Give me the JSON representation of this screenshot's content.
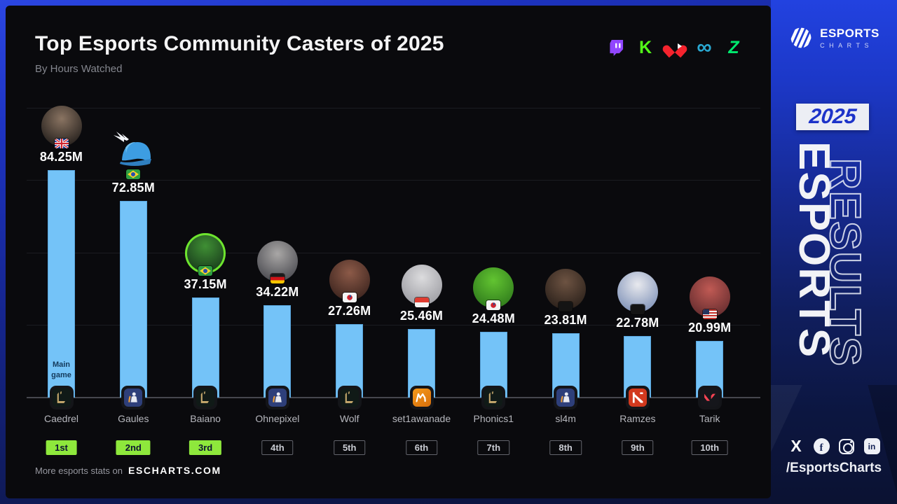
{
  "header": {
    "title": "Top Esports Community Casters of 2025",
    "subtitle": "By Hours Watched",
    "platform_icons": [
      "twitch",
      "kick",
      "heart-live",
      "soop-infinity",
      "chzzk"
    ]
  },
  "chart_data": {
    "type": "bar",
    "title": "Top Esports Community Casters of 2025",
    "metric": "Hours Watched",
    "unit": "millions of hours",
    "ylim": [
      0,
      107
    ],
    "grid": true,
    "bar_color": "#74c3f8",
    "main_game_note": "Main game",
    "casters": [
      {
        "rank": "1st",
        "name": "Caedrel",
        "value": 84.25,
        "label": "84.25M",
        "country": "gb",
        "game": "lol",
        "top3": true,
        "avatar": "circle",
        "avatar_colors": [
          "#8a7462",
          "#241f1c"
        ]
      },
      {
        "rank": "2nd",
        "name": "Gaules",
        "value": 72.85,
        "label": "72.85M",
        "country": "br",
        "game": "cs2",
        "top3": true,
        "avatar": "helmet",
        "avatar_colors": [
          "#4aa3e8",
          "#2f7fc0"
        ]
      },
      {
        "rank": "3rd",
        "name": "Baiano",
        "value": 37.15,
        "label": "37.15M",
        "country": "br",
        "game": "lol",
        "top3": true,
        "avatar": "circle",
        "avatar_colors": [
          "#3f8f34",
          "#16351a"
        ],
        "ring": "#6ee52e"
      },
      {
        "rank": "4th",
        "name": "Ohnepixel",
        "value": 34.22,
        "label": "34.22M",
        "country": "de",
        "game": "cs2",
        "top3": false,
        "avatar": "circle",
        "avatar_colors": [
          "#a9a7a6",
          "#4a4a50"
        ]
      },
      {
        "rank": "5th",
        "name": "Wolf",
        "value": 27.26,
        "label": "27.26M",
        "country": "kr",
        "game": "lol",
        "top3": false,
        "avatar": "circle",
        "avatar_colors": [
          "#8c5a48",
          "#3c241e"
        ]
      },
      {
        "rank": "6th",
        "name": "set1awanade",
        "value": 25.46,
        "label": "25.46M",
        "country": "id",
        "game": "mlbb",
        "top3": false,
        "avatar": "circle",
        "avatar_colors": [
          "#dcdcde",
          "#9c9ca2"
        ]
      },
      {
        "rank": "7th",
        "name": "Phonics1",
        "value": 24.48,
        "label": "24.48M",
        "country": "kr",
        "game": "lol",
        "top3": false,
        "avatar": "circle",
        "avatar_colors": [
          "#62c431",
          "#2f7a1c"
        ]
      },
      {
        "rank": "8th",
        "name": "sl4m",
        "value": 23.81,
        "label": "23.81M",
        "country": "censored",
        "game": "cs2",
        "top3": false,
        "avatar": "circle",
        "avatar_colors": [
          "#6d5342",
          "#2a201a"
        ]
      },
      {
        "rank": "9th",
        "name": "Ramzes",
        "value": 22.78,
        "label": "22.78M",
        "country": "censored",
        "game": "dota2",
        "top3": false,
        "avatar": "circle",
        "avatar_colors": [
          "#e8e9ee",
          "#7f92b8"
        ]
      },
      {
        "rank": "10th",
        "name": "Tarik",
        "value": 20.99,
        "label": "20.99M",
        "country": "us",
        "game": "valorant",
        "top3": false,
        "avatar": "circle",
        "avatar_colors": [
          "#c05a54",
          "#642c2e"
        ]
      }
    ],
    "games": {
      "lol": "League of Legends",
      "cs2": "Counter-Strike 2",
      "mlbb": "Mobile Legends: Bang Bang",
      "dota2": "Dota 2",
      "valorant": "VALORANT"
    }
  },
  "footer": {
    "text": "More esports stats on",
    "site": "ESCHARTS.COM"
  },
  "sidebar": {
    "brand_line1": "ESPORTS",
    "brand_line2": "CHARTS",
    "year": "2025",
    "vertical_fill": "ESPORTS",
    "vertical_outline": "RESULTS",
    "social_icons": [
      "x",
      "facebook",
      "instagram",
      "linkedin"
    ],
    "handle": "/EsportsCharts"
  },
  "colors": {
    "bar": "#74c3f8",
    "badge_green": "#8ee83c",
    "card_bg": "#0a0a0d",
    "sidebar_blue_top": "#2242e0",
    "sidebar_blue_bottom": "#0b1232",
    "twitch": "#9146ff",
    "kick": "#53fc18",
    "heart": "#f5232d",
    "soop": "#2aa9d2",
    "chzzk": "#00e96e"
  }
}
